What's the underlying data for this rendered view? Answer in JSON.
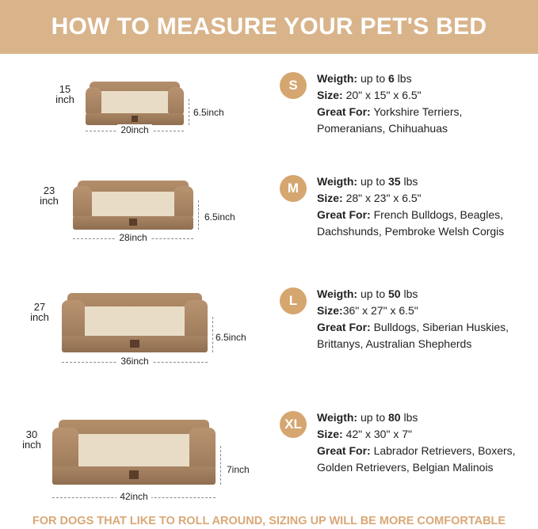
{
  "title": "HOW TO MEASURE YOUR PET'S BED",
  "labels": {
    "weight": "Weigth:",
    "size": "Size:",
    "great": "Great For:"
  },
  "sizes": [
    {
      "badge": "S",
      "weight_pre": " up to ",
      "weight_num": "6",
      "weight_unit": " lbs",
      "size": " 20\" x 15\" x 6.5\"",
      "breeds1": " Yorkshire Terriers,",
      "breeds2": "Pomeranians, Chihuahuas",
      "depth": "15\ninch",
      "height": "6.5inch",
      "width": "20inch"
    },
    {
      "badge": "M",
      "weight_pre": " up to ",
      "weight_num": "35",
      "weight_unit": " lbs",
      "size": " 28\" x 23\" x 6.5\"",
      "breeds1": " French Bulldogs, Beagles,",
      "breeds2": "Dachshunds, Pembroke Welsh Corgis",
      "depth": "23\ninch",
      "height": "6.5inch",
      "width": "28inch"
    },
    {
      "badge": "L",
      "weight_pre": " up to ",
      "weight_num": "50",
      "weight_unit": " lbs",
      "size": "36\" x 27\" x 6.5\"",
      "breeds1": " Bulldogs, Siberian Huskies,",
      "breeds2": "Brittanys, Australian Shepherds",
      "depth": "27\ninch",
      "height": "6.5inch",
      "width": "36inch"
    },
    {
      "badge": "XL",
      "weight_pre": " up to ",
      "weight_num": "80",
      "weight_unit": " lbs",
      "size": " 42\" x 30\" x 7\"",
      "breeds1": " Labrador Retrievers, Boxers,",
      "breeds2": "Golden Retrievers, Belgian Malinois",
      "depth": "30\ninch",
      "height": "7inch",
      "width": "42inch"
    }
  ],
  "footer": "FOR DOGS THAT LIKE TO ROLL AROUND, SIZING UP WILL BE MORE COMFORTABLE",
  "colors": {
    "header": "#d9b48b",
    "badge": "#d6a670",
    "footer": "#d9a877"
  }
}
